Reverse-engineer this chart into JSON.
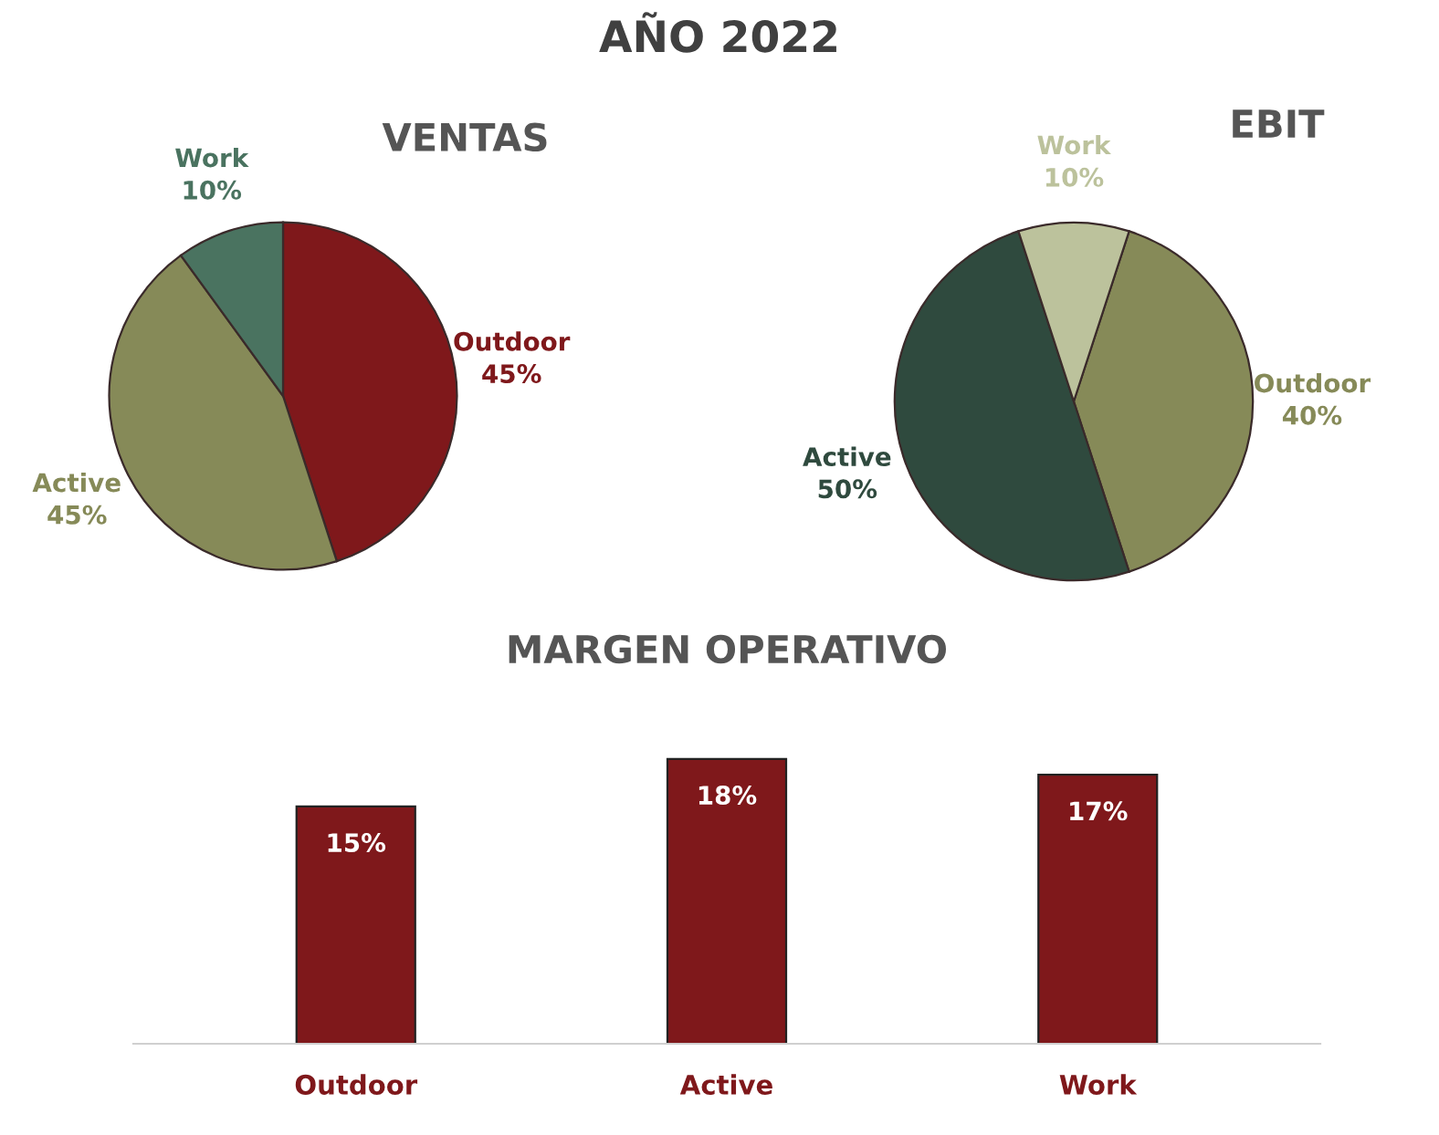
{
  "chart_data": [
    {
      "type": "pie",
      "title": "VENTAS",
      "annotations": [
        "AÑO 2022"
      ],
      "categories": [
        "Outdoor",
        "Active",
        "Work"
      ],
      "values": [
        45,
        45,
        10
      ],
      "value_labels": [
        "45%",
        "45%",
        "10%"
      ],
      "colors": [
        "#7f181b",
        "#868a58",
        "#4a7360"
      ]
    },
    {
      "type": "pie",
      "title": "EBIT",
      "categories": [
        "Outdoor",
        "Active",
        "Work"
      ],
      "values": [
        40,
        50,
        10
      ],
      "value_labels": [
        "40%",
        "50%",
        "10%"
      ],
      "colors": [
        "#868a58",
        "#2f4a3e",
        "#bcc29c"
      ]
    },
    {
      "type": "bar",
      "title": "MARGEN OPERATIVO",
      "categories": [
        "Outdoor",
        "Active",
        "Work"
      ],
      "values": [
        15,
        18,
        17
      ],
      "value_labels": [
        "15%",
        "18%",
        "17%"
      ],
      "color": "#7f181b"
    }
  ]
}
